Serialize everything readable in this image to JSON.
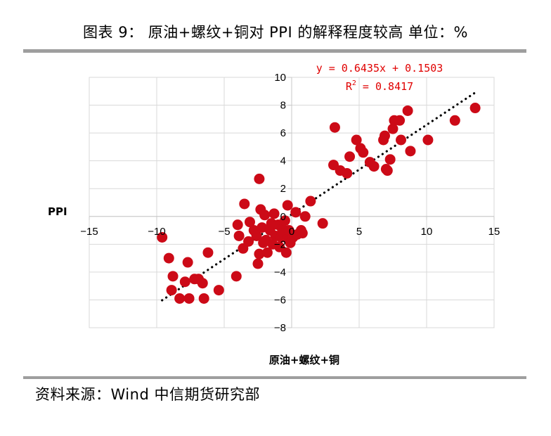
{
  "figure": {
    "title": "图表 9： 原油+螺纹+铜对 PPI 的解释程度较高 单位：%",
    "source": "资料来源：Wind 中信期货研究部"
  },
  "chart_data": {
    "type": "scatter",
    "title": "",
    "xlabel": "原油+螺纹+铜",
    "ylabel": "PPI",
    "xlim": [
      -15,
      15
    ],
    "ylim": [
      -8,
      10
    ],
    "x_ticks": [
      -15,
      -10,
      -5,
      0,
      5,
      10,
      15
    ],
    "y_ticks": [
      -8,
      -6,
      -4,
      -2,
      0,
      2,
      4,
      6,
      8,
      10
    ],
    "x_tick_labels": [
      "−15",
      "−10",
      "−5",
      "0",
      "5",
      "10",
      "15"
    ],
    "y_tick_labels": [
      "−8",
      "−6",
      "−4",
      "−2",
      "0",
      "2",
      "4",
      "6",
      "8",
      "10"
    ],
    "grid": true,
    "point_color": "#cc0a17",
    "trendline_color": "#000000",
    "trendline": {
      "slope": 0.6435,
      "intercept": 0.1503,
      "x_range": [
        -9.6,
        13.6
      ],
      "equation": "y = 0.6435x + 0.1503",
      "r2_label": "R",
      "r2_sup": "2",
      "r2_value": " = 0.8417"
    },
    "points": [
      [
        -9.6,
        -1.5
      ],
      [
        -9.1,
        -3.0
      ],
      [
        -8.9,
        -5.3
      ],
      [
        -8.8,
        -4.3
      ],
      [
        -8.3,
        -5.9
      ],
      [
        -7.9,
        -4.7
      ],
      [
        -7.7,
        -3.3
      ],
      [
        -7.6,
        -5.9
      ],
      [
        -7.2,
        -4.5
      ],
      [
        -6.9,
        -4.5
      ],
      [
        -6.6,
        -4.8
      ],
      [
        -6.5,
        -5.9
      ],
      [
        -6.2,
        -2.6
      ],
      [
        -5.4,
        -5.3
      ],
      [
        -4.1,
        -4.3
      ],
      [
        -4.0,
        -0.6
      ],
      [
        -3.9,
        -1.4
      ],
      [
        -3.6,
        -2.3
      ],
      [
        -3.5,
        0.9
      ],
      [
        -3.2,
        -1.8
      ],
      [
        -3.1,
        -0.4
      ],
      [
        -2.8,
        -1.0
      ],
      [
        -2.6,
        -1.4
      ],
      [
        -2.5,
        -3.4
      ],
      [
        -2.4,
        -2.7
      ],
      [
        -2.4,
        2.7
      ],
      [
        -2.3,
        0.5
      ],
      [
        -2.2,
        -0.8
      ],
      [
        -2.1,
        -1.9
      ],
      [
        -2.0,
        0.1
      ],
      [
        -1.9,
        -1.7
      ],
      [
        -1.8,
        -2.6
      ],
      [
        -1.6,
        -1.0
      ],
      [
        -1.5,
        -0.5
      ],
      [
        -1.4,
        -2.0
      ],
      [
        -1.3,
        0.2
      ],
      [
        -1.2,
        -1.4
      ],
      [
        -1.0,
        -0.6
      ],
      [
        -0.9,
        -2.2
      ],
      [
        -0.8,
        -1.5
      ],
      [
        -0.7,
        -0.9
      ],
      [
        -0.6,
        -1.2
      ],
      [
        -0.5,
        -0.3
      ],
      [
        -0.4,
        -2.6
      ],
      [
        -0.3,
        -1.6
      ],
      [
        -0.2,
        -1.0
      ],
      [
        -0.1,
        -1.9
      ],
      [
        -0.3,
        0.8
      ],
      [
        0.1,
        -1.5
      ],
      [
        0.3,
        0.3
      ],
      [
        0.4,
        -1.3
      ],
      [
        0.7,
        -1.0
      ],
      [
        0.8,
        -1.2
      ],
      [
        1.0,
        0.0
      ],
      [
        1.4,
        1.1
      ],
      [
        2.3,
        -0.5
      ],
      [
        3.1,
        3.7
      ],
      [
        3.2,
        6.4
      ],
      [
        3.6,
        3.3
      ],
      [
        4.1,
        3.1
      ],
      [
        4.3,
        4.3
      ],
      [
        4.8,
        5.5
      ],
      [
        5.1,
        4.9
      ],
      [
        5.3,
        4.6
      ],
      [
        5.8,
        3.9
      ],
      [
        6.1,
        3.6
      ],
      [
        6.8,
        5.5
      ],
      [
        6.9,
        5.8
      ],
      [
        7.0,
        3.4
      ],
      [
        7.1,
        3.3
      ],
      [
        7.3,
        4.1
      ],
      [
        7.5,
        6.3
      ],
      [
        7.6,
        6.9
      ],
      [
        8.0,
        6.9
      ],
      [
        8.1,
        5.5
      ],
      [
        8.6,
        7.6
      ],
      [
        8.8,
        4.7
      ],
      [
        10.1,
        5.5
      ],
      [
        12.1,
        6.9
      ],
      [
        13.6,
        7.8
      ]
    ]
  }
}
